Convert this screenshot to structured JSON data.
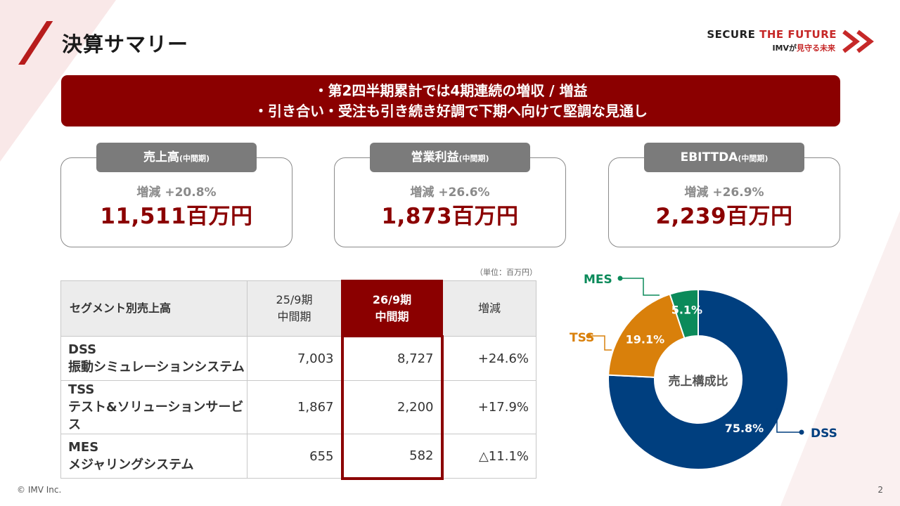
{
  "header": {
    "title": "決算サマリー"
  },
  "brand": {
    "main_part1": "SECURE ",
    "main_part2": "THE FUTURE",
    "sub_part1": "IMVが",
    "sub_part2": "見守る未来"
  },
  "banner": {
    "line1": "・第2四半期累計では4期連続の増収 / 増益",
    "line2": "・引き合い・受注も引き続き好調で下期へ向けて堅調な見通し"
  },
  "kpis": [
    {
      "label": "売上高",
      "label_small": "(中間期)",
      "change": "増減 +20.8%",
      "value": "11,511百万円"
    },
    {
      "label": "営業利益",
      "label_small": "(中間期)",
      "change": "増減 +26.6%",
      "value": "1,873百万円"
    },
    {
      "label": "EBITTDA",
      "label_small": "(中間期)",
      "change": "増減 +26.9%",
      "value": "2,239百万円"
    }
  ],
  "table": {
    "unit": "（単位：百万円）",
    "headers": [
      "セグメント別売上高",
      "25/9期",
      "中間期",
      "26/9期",
      "中間期",
      "増減"
    ],
    "rows": [
      {
        "code": "DSS",
        "name": "振動シミュレーションシステム",
        "prev": "7,003",
        "curr": "8,727",
        "change": "+24.6%"
      },
      {
        "code": "TSS",
        "name": "テスト&ソリューションサービス",
        "prev": "1,867",
        "curr": "2,200",
        "change": "+17.9%"
      },
      {
        "code": "MES",
        "name": "メジャリングシステム",
        "prev": "655",
        "curr": "582",
        "change": "△11.1%"
      }
    ]
  },
  "donut": {
    "center_label": "売上構成比",
    "colors": {
      "DSS": "#003f7f",
      "TSS": "#d9800b",
      "MES": "#0b8a5a"
    },
    "segments": [
      {
        "name": "DSS",
        "percent": 75.8,
        "label": "75.8%"
      },
      {
        "name": "TSS",
        "percent": 19.1,
        "label": "19.1%"
      },
      {
        "name": "MES",
        "percent": 5.1,
        "label": "5.1%"
      }
    ]
  },
  "footer": {
    "copyright": "© IMV Inc.",
    "page": "2"
  }
}
